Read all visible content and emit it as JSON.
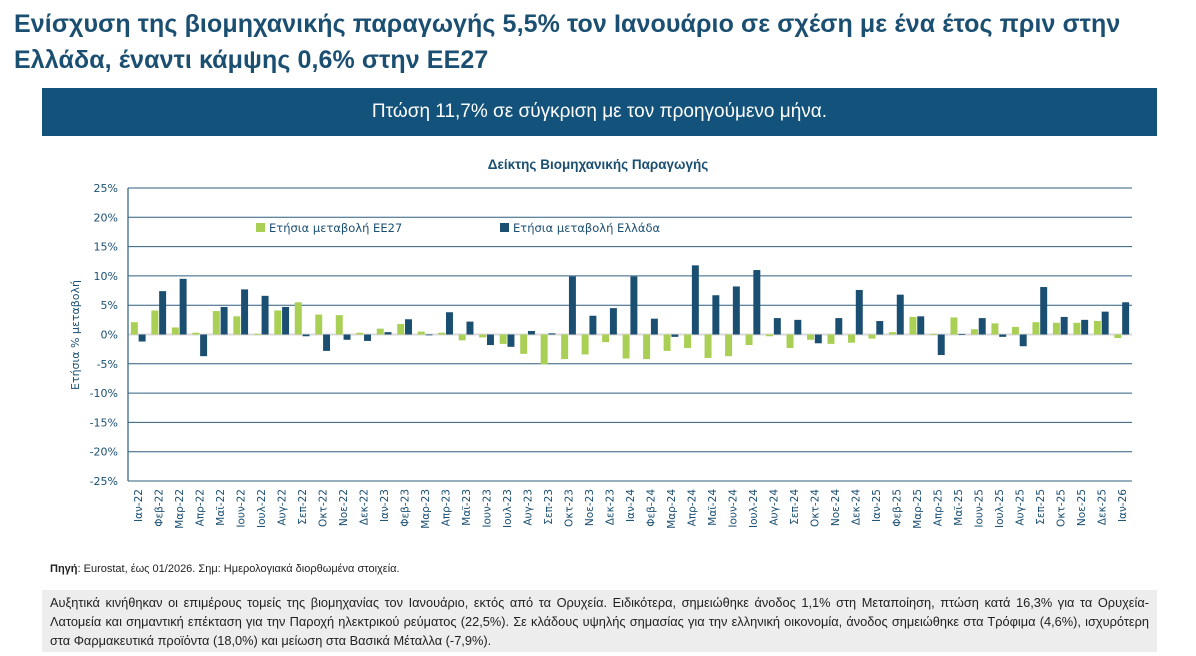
{
  "headline": "Ενίσχυση της βιομηχανικής παραγωγής 5,5% τον Ιανουάριο σε σχέση με ένα έτος πριν στην Ελλάδα, έναντι κάμψης 0,6% στην ΕΕ27",
  "banner": "Πτώση 11,7% σε σύγκριση με τον προηγούμενο μήνα.",
  "source_label": "Πηγή",
  "source_text": ": Eurostat, έως 01/2026. Σημ: Ημερολογιακά διορθωμένα στοιχεία.",
  "note": "Αυξητικά κινήθηκαν οι επιμέρους τομείς της βιομηχανίας τον Ιανουάριο, εκτός από τα Ορυχεία. Ειδικότερα, σημειώθηκε άνοδος 1,1% στη Μεταποίηση, πτώση κατά 16,3% για τα Ορυχεία-Λατομεία και σημαντική επέκταση για την Παροχή ηλεκτρικού ρεύματος (22,5%). Σε κλάδους υψηλής σημασίας για την ελληνική οικονομία, άνοδος σημειώθηκε στα Τρόφιμα (4,6%), ισχυρότερη στα Φαρμακευτικά προϊόντα (18,0%) και μείωση στα Βασικά Μέταλλα (-7,9%).",
  "colors": {
    "eu27": "#a9cf54",
    "greece": "#1b4f72",
    "axis": "#2e5f7f",
    "text": "#1b4f72"
  },
  "chart_data": {
    "type": "bar",
    "title": "Δείκτης Βιομηχανικής Παραγωγής",
    "xlabel": "",
    "ylabel": "Ετήσια % μεταβολή",
    "ylim": [
      -25,
      25
    ],
    "yticks": [
      25,
      20,
      15,
      10,
      5,
      0,
      -5,
      -10,
      -15,
      -20,
      -25
    ],
    "ytick_labels": [
      "25%",
      "20%",
      "15%",
      "10%",
      "5%",
      "0%",
      "-5%",
      "-10%",
      "-15%",
      "-20%",
      "-25%"
    ],
    "grid": true,
    "legend_position": "top-center",
    "categories": [
      "Ιαν-22",
      "Φεβ-22",
      "Μαρ-22",
      "Απρ-22",
      "Μαϊ-22",
      "Ιουν-22",
      "Ιουλ-22",
      "Αυγ-22",
      "Σεπ-22",
      "Οκτ-22",
      "Νοε-22",
      "Δεκ-22",
      "Ιαν-23",
      "Φεβ-23",
      "Μαρ-23",
      "Απρ-23",
      "Μαϊ-23",
      "Ιουν-23",
      "Ιουλ-23",
      "Αυγ-23",
      "Σεπ-23",
      "Οκτ-23",
      "Νοε-23",
      "Δεκ-23",
      "Ιαν-24",
      "Φεβ-24",
      "Μαρ-24",
      "Απρ-24",
      "Μαϊ-24",
      "Ιουν-24",
      "Ιουλ-24",
      "Αυγ-24",
      "Σεπ-24",
      "Οκτ-24",
      "Νοε-24",
      "Δεκ-24",
      "Ιαν-25",
      "Φεβ-25",
      "Μαρ-25",
      "Απρ-25",
      "Μαϊ-25",
      "Ιουν-25",
      "Ιουλ-25",
      "Αυγ-25",
      "Σεπ-25",
      "Οκτ-25",
      "Νοε-25",
      "Δεκ-25",
      "Ιαν-26"
    ],
    "series": [
      {
        "name": "Ετήσια μεταβολή ΕΕ27",
        "color": "#a9cf54",
        "values": [
          2.1,
          4.1,
          1.2,
          0.3,
          4.0,
          3.1,
          0.1,
          4.1,
          5.5,
          3.4,
          3.3,
          0.3,
          1.0,
          1.8,
          0.5,
          0.3,
          -1.0,
          -0.5,
          -1.6,
          -3.3,
          -5.1,
          -4.2,
          -3.4,
          -1.3,
          -4.1,
          -4.2,
          -2.8,
          -2.3,
          -4.0,
          -3.7,
          -1.8,
          -0.3,
          -2.3,
          -0.9,
          -1.6,
          -1.4,
          -0.7,
          0.4,
          3.0,
          0.1,
          2.9,
          0.9,
          1.9,
          1.3,
          2.1,
          2.0,
          2.0,
          2.3,
          -0.6
        ]
      },
      {
        "name": "Ετήσια μεταβολή Ελλάδα",
        "color": "#1b4f72",
        "values": [
          -1.2,
          7.4,
          9.5,
          -3.7,
          4.7,
          7.7,
          6.6,
          4.7,
          -0.3,
          -2.8,
          -0.9,
          -1.1,
          0.4,
          2.6,
          -0.1,
          3.8,
          2.2,
          -1.8,
          -2.1,
          0.6,
          0.2,
          9.9,
          3.2,
          4.5,
          9.9,
          2.7,
          -0.4,
          11.8,
          6.7,
          8.2,
          11.0,
          2.8,
          2.5,
          -1.5,
          2.8,
          7.6,
          2.3,
          6.8,
          3.1,
          -3.5,
          0.1,
          2.8,
          -0.4,
          -2.0,
          8.1,
          3.0,
          2.5,
          3.9,
          5.5
        ]
      }
    ]
  }
}
